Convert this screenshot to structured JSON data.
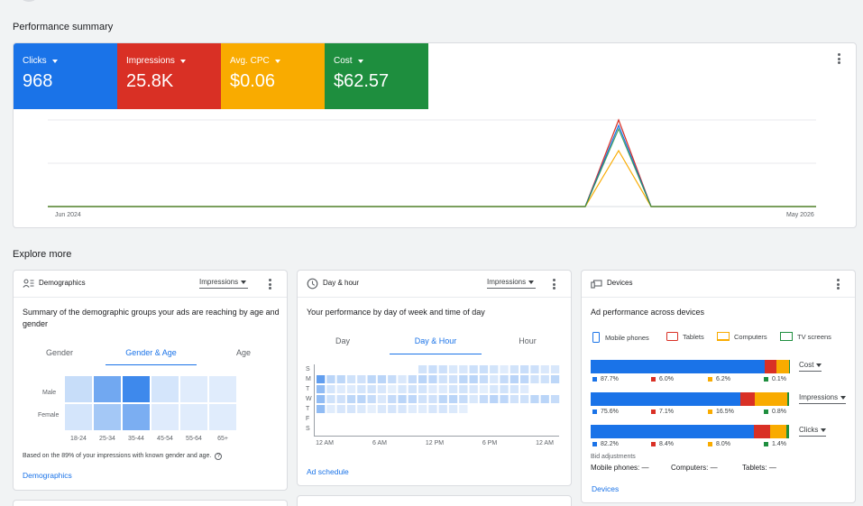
{
  "performance": {
    "title": "Performance summary",
    "metrics": [
      {
        "label": "Clicks",
        "value": "968",
        "color": "#1a73e8"
      },
      {
        "label": "Impressions",
        "value": "25.8K",
        "color": "#d93025"
      },
      {
        "label": "Avg. CPC",
        "value": "$0.06",
        "color": "#f9ab00"
      },
      {
        "label": "Cost",
        "value": "$62.57",
        "color": "#1e8e3e"
      }
    ],
    "x_start": "Jun 2024",
    "x_end": "May 2026"
  },
  "explore": {
    "title": "Explore more"
  },
  "demographics": {
    "title": "Demographics",
    "metric": "Impressions",
    "heading": "Summary of the demographic groups your ads are reaching by age and gender",
    "tabs": [
      "Gender",
      "Gender & Age",
      "Age"
    ],
    "rows": [
      "Male",
      "Female"
    ],
    "ages": [
      "18-24",
      "25-34",
      "35-44",
      "45-54",
      "55-64",
      "65+"
    ],
    "heat": [
      [
        0.18,
        0.6,
        0.85,
        0.12,
        0.05,
        0.03
      ],
      [
        0.12,
        0.35,
        0.55,
        0.07,
        0.03,
        0.02
      ]
    ],
    "footnote": "Based on the 89% of your impressions with known gender and age.",
    "help": "?",
    "link": "Demographics"
  },
  "dayhour": {
    "title": "Day & hour",
    "metric": "Impressions",
    "heading": "Your performance by day of week and time of day",
    "tabs": [
      "Day",
      "Day & Hour",
      "Hour"
    ],
    "days": [
      "S",
      "M",
      "T",
      "W",
      "T",
      "F",
      "S"
    ],
    "times": [
      "12 AM",
      "6 AM",
      "12 PM",
      "6 PM",
      "12 AM"
    ],
    "link": "Ad schedule"
  },
  "devices": {
    "title": "Devices",
    "heading": "Ad performance across devices",
    "legend": [
      {
        "label": "Mobile phones",
        "color": "#1a73e8"
      },
      {
        "label": "Tablets",
        "color": "#d93025"
      },
      {
        "label": "Computers",
        "color": "#f9ab00"
      },
      {
        "label": "TV screens",
        "color": "#1e8e3e"
      }
    ],
    "bars": [
      {
        "metric": "Cost",
        "values": [
          87.7,
          6.0,
          6.2,
          0.1
        ],
        "labels": [
          "87.7%",
          "6.0%",
          "6.2%",
          "0.1%"
        ]
      },
      {
        "metric": "Impressions",
        "values": [
          75.6,
          7.1,
          16.5,
          0.8
        ],
        "labels": [
          "75.6%",
          "7.1%",
          "16.5%",
          "0.8%"
        ]
      },
      {
        "metric": "Clicks",
        "values": [
          82.2,
          8.4,
          8.0,
          1.4
        ],
        "labels": [
          "82.2%",
          "8.4%",
          "8.0%",
          "1.4%"
        ]
      }
    ],
    "bid_title": "Bid adjustments",
    "bid": [
      {
        "label": "Mobile phones:",
        "value": "—"
      },
      {
        "label": "Computers:",
        "value": "—"
      },
      {
        "label": "Tablets:",
        "value": "—"
      }
    ],
    "link": "Devices"
  }
}
